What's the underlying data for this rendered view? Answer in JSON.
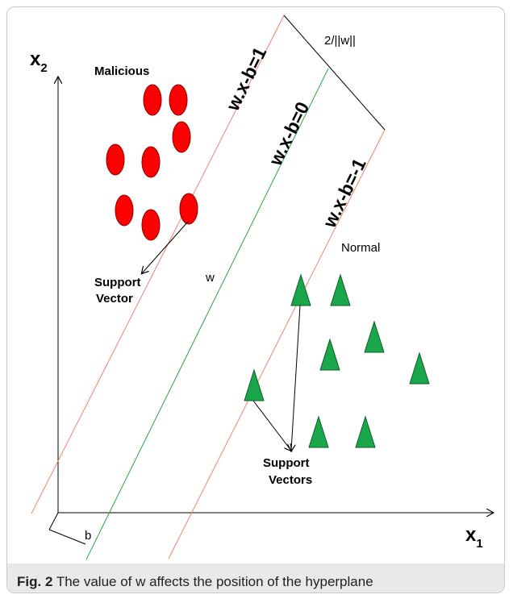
{
  "axes": {
    "x_label": "x",
    "x_sub": "1",
    "y_label": "x",
    "y_sub": "2",
    "offset_label": "b"
  },
  "classes": {
    "malicious": "Malicious",
    "normal": "Normal"
  },
  "lines": {
    "upper": "w.x-b=1",
    "middle": "w.x-b=0",
    "lower": "w.x-b=-1",
    "margin": "2/||w||",
    "w_label": "w"
  },
  "annotations": {
    "support_vector_1": "Support",
    "support_vector_2": "Vector",
    "support_vectors_1": "Support",
    "support_vectors_2": "Vectors"
  },
  "caption": {
    "label": "Fig. 2",
    "text": " The value of w affects the position of the hyperplane"
  },
  "colors": {
    "malicious_fill": "#ff0000",
    "normal_fill": "#1aa64a",
    "margin_lines": "#f08070",
    "hyperplane": "#22a84a",
    "caption_bg": "#e9e9e9"
  }
}
